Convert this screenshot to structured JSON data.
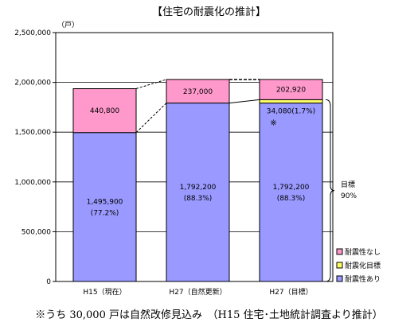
{
  "chart_data": {
    "type": "bar",
    "stacked": true,
    "title": "【住宅の耐震化の推計】",
    "y_unit": "（戸）",
    "ylim": [
      0,
      2500000
    ],
    "ytick_labels": [
      "0",
      "500,000",
      "1,000,000",
      "1,500,000",
      "2,000,000",
      "2,500,000"
    ],
    "ytick_values": [
      0,
      500000,
      1000000,
      1500000,
      2000000,
      2500000
    ],
    "grid": true,
    "legend_position": "right",
    "categories": [
      "H15（現在）",
      "H27（自然更新）",
      "H27（目標）"
    ],
    "series": [
      {
        "name": "耐震性あり",
        "color": "#9999ff",
        "values": [
          1495900,
          1792200,
          1792200
        ],
        "labels": [
          "1,495,900\n(77.2%)",
          "1,792,200\n(88.3%)",
          "1,792,200\n(88.3%)"
        ]
      },
      {
        "name": "耐震化目標",
        "color": "#ffff66",
        "values": [
          0,
          0,
          34080
        ],
        "labels": [
          "",
          "",
          "34,080(1.7%)\n※"
        ]
      },
      {
        "name": "耐震性なし",
        "color": "#ff99cc",
        "values": [
          440800,
          237000,
          202920
        ],
        "labels": [
          "440,800",
          "237,000",
          "202,920"
        ]
      }
    ],
    "annotations": {
      "target_label": "目標",
      "target_pct": "90%"
    }
  },
  "footnote": "※うち 30,000 戸は自然改修見込み　（H15 住宅･土地統計調査より推計）"
}
